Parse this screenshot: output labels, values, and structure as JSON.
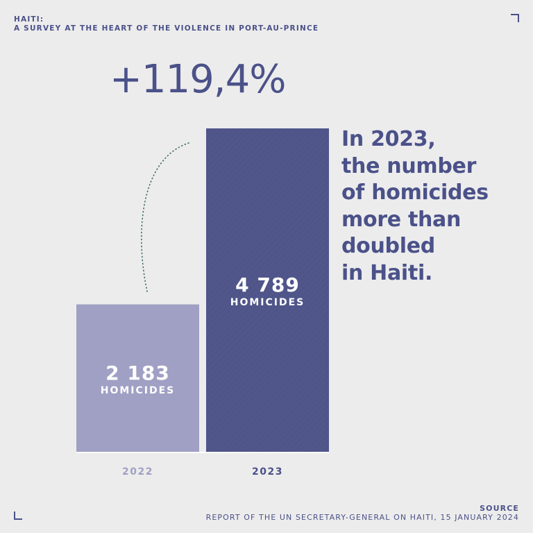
{
  "header": {
    "line1": "HAITI:",
    "line2": "A SURVEY AT THE HEART OF THE VIOLENCE IN PORT-AU-PRINCE"
  },
  "headline": {
    "percent_change": "+119,4%",
    "lines": [
      "In 2023,",
      "the number",
      "of homicides",
      "more than",
      "doubled",
      "in Haiti."
    ]
  },
  "source": {
    "label": "SOURCE",
    "text": "REPORT OF THE UN SECRETARY-GENERAL ON HAITI, 15 JANUARY 2024"
  },
  "colors": {
    "background": "#ececec",
    "primary": "#4b5189",
    "bar_2022": "#a0a0c4",
    "bar_2023": "#4f5589",
    "label_2022": "#a0a0c4",
    "label_2023": "#4b5189"
  },
  "chart_data": {
    "type": "bar",
    "categories": [
      "2022",
      "2023"
    ],
    "values": [
      2183,
      4789
    ],
    "value_labels": [
      "2 183",
      "4 789"
    ],
    "unit_label": "HOMICIDES",
    "ylim": [
      0,
      4789
    ],
    "grid": false,
    "legend": "none"
  }
}
